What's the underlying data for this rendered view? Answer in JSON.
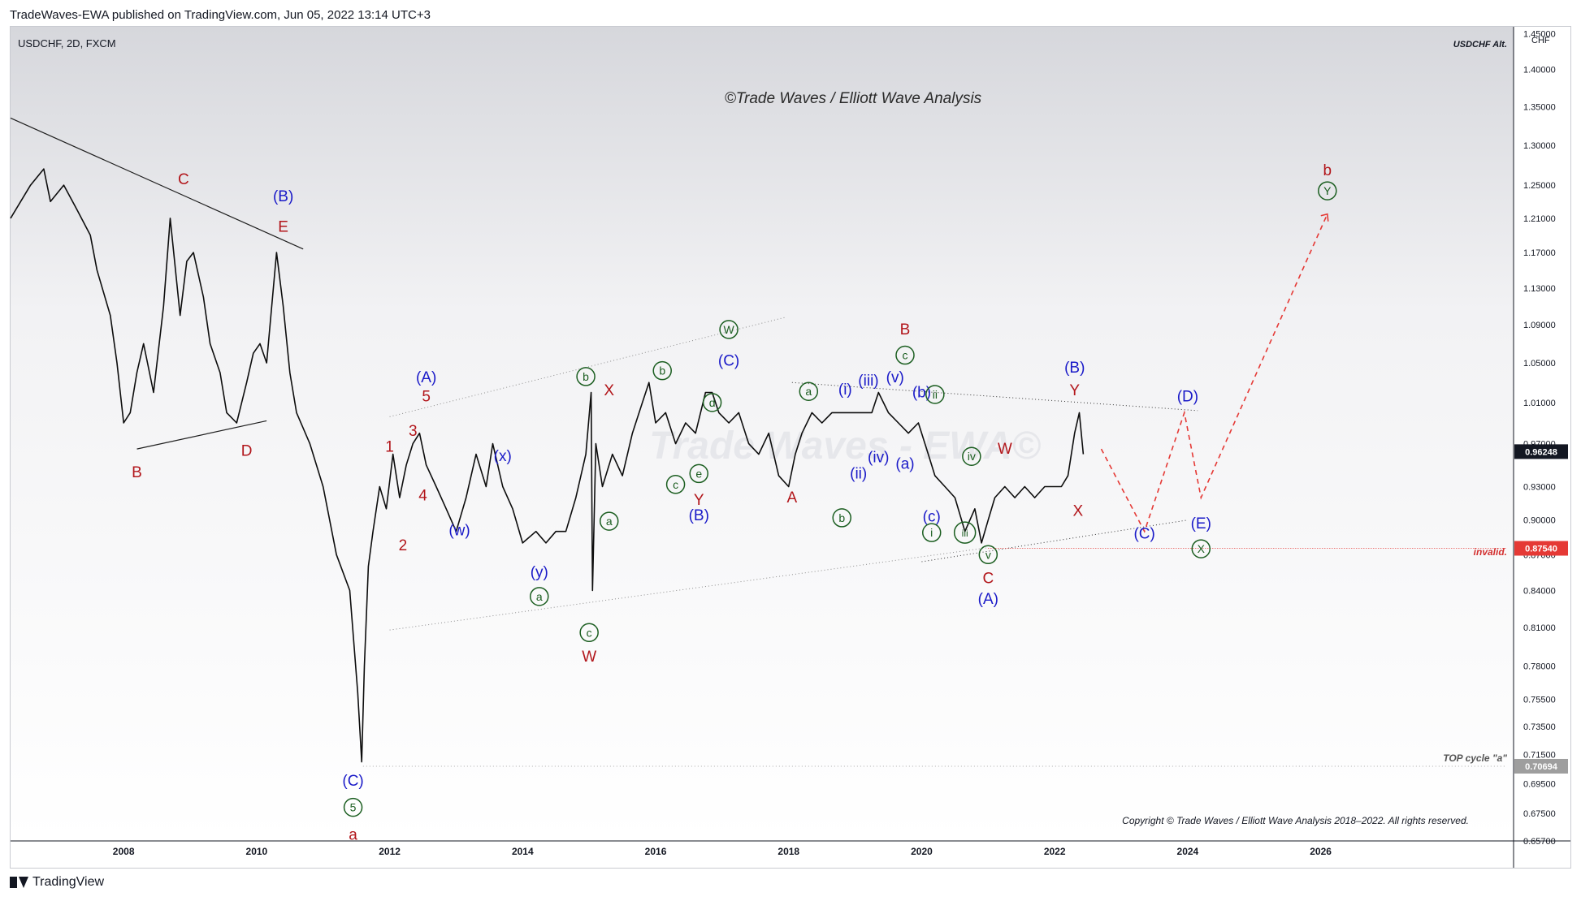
{
  "header": {
    "published_by": "TradeWaves-EWA published on TradingView.com, Jun 05, 2022 13:14 UTC+3"
  },
  "symbol_info": "USDCHF, 2D, FXCM",
  "chart_alt_label": "USDCHF Alt.",
  "watermark": "©Trade Waves / Elliott Wave Analysis",
  "faint_watermark": "Trade Waves - EWA©",
  "copyright": "Copyright © Trade Waves / Elliott Wave Analysis 2018–2022. All rights reserved.",
  "invalid_label": "invalid.",
  "top_cycle_label": "TOP cycle \"a\"",
  "footer": {
    "brand": "TradingView"
  },
  "colors": {
    "red": "#b2161b",
    "blue": "#1a1ac8",
    "green": "#1b5e20",
    "price_line": "#0d0d0d"
  },
  "chart_data": {
    "type": "line",
    "y_axis": {
      "unit": "CHF",
      "ticks": [
        "1.45000",
        "1.40000",
        "1.35000",
        "1.30000",
        "1.25000",
        "1.21000",
        "1.17000",
        "1.13000",
        "1.09000",
        "1.05000",
        "1.01000",
        "0.97000",
        "0.93000",
        "0.90000",
        "0.87000",
        "0.84000",
        "0.81000",
        "0.78000",
        "0.75500",
        "0.73500",
        "0.71500",
        "0.69500",
        "0.67500",
        "0.65700"
      ],
      "range": [
        0.657,
        1.46
      ]
    },
    "x_axis": {
      "ticks": [
        "2008",
        "2010",
        "2012",
        "2014",
        "2016",
        "2018",
        "2020",
        "2022",
        "2024",
        "2026"
      ],
      "range": [
        2006.3,
        2028.9
      ]
    },
    "price_badges": [
      {
        "label": "0.96248",
        "value": 0.96248,
        "color": "#131722"
      },
      {
        "label": "0.87540",
        "value": 0.8754,
        "color": "#e53935"
      },
      {
        "label": "0.70694",
        "value": 0.70694,
        "color": "#9e9e9e"
      }
    ],
    "series": [
      {
        "x": [
          2006.3,
          2006.6,
          2006.8,
          2006.9,
          2007.1,
          2007.3,
          2007.5,
          2007.6,
          2007.8,
          2007.9,
          2008.0,
          2008.1,
          2008.2,
          2008.3,
          2008.45,
          2008.6,
          2008.7,
          2008.85,
          2008.95,
          2009.05,
          2009.2,
          2009.3,
          2009.45,
          2009.55,
          2009.7,
          2009.85,
          2009.95,
          2010.05,
          2010.15,
          2010.3,
          2010.4,
          2010.5,
          2010.6,
          2010.8,
          2011.0,
          2011.2,
          2011.4,
          2011.52,
          2011.58,
          2011.62,
          2011.68,
          2011.75,
          2011.85,
          2011.95,
          2012.05,
          2012.15,
          2012.25,
          2012.35,
          2012.45,
          2012.55,
          2012.7,
          2012.85,
          2013.0,
          2013.15,
          2013.3,
          2013.45,
          2013.55,
          2013.7,
          2013.85,
          2014.0,
          2014.2,
          2014.35,
          2014.5,
          2014.65,
          2014.8,
          2014.95,
          2015.03,
          2015.05,
          2015.1,
          2015.2,
          2015.35,
          2015.5,
          2015.65,
          2015.8,
          2015.9,
          2016.0,
          2016.15,
          2016.3,
          2016.45,
          2016.6,
          2016.75,
          2016.85,
          2016.95,
          2017.1,
          2017.25,
          2017.4,
          2017.55,
          2017.7,
          2017.85,
          2018.0,
          2018.1,
          2018.2,
          2018.35,
          2018.5,
          2018.65,
          2018.8,
          2018.95,
          2019.1,
          2019.25,
          2019.35,
          2019.5,
          2019.65,
          2019.8,
          2019.95,
          2020.1,
          2020.2,
          2020.35,
          2020.5,
          2020.65,
          2020.8,
          2020.9,
          2021.0,
          2021.1,
          2021.25,
          2021.4,
          2021.55,
          2021.7,
          2021.85,
          2022.0,
          2022.1,
          2022.2,
          2022.3,
          2022.37,
          2022.43
        ],
        "y": [
          1.21,
          1.25,
          1.27,
          1.23,
          1.25,
          1.22,
          1.19,
          1.15,
          1.1,
          1.05,
          0.99,
          1.0,
          1.04,
          1.07,
          1.02,
          1.11,
          1.21,
          1.1,
          1.16,
          1.17,
          1.12,
          1.07,
          1.04,
          1.0,
          0.99,
          1.03,
          1.06,
          1.07,
          1.05,
          1.17,
          1.11,
          1.04,
          1.0,
          0.97,
          0.93,
          0.87,
          0.84,
          0.76,
          0.71,
          0.78,
          0.86,
          0.89,
          0.93,
          0.91,
          0.96,
          0.92,
          0.95,
          0.97,
          0.98,
          0.95,
          0.93,
          0.91,
          0.89,
          0.92,
          0.96,
          0.93,
          0.97,
          0.93,
          0.91,
          0.88,
          0.89,
          0.88,
          0.89,
          0.89,
          0.92,
          0.96,
          1.02,
          0.84,
          0.97,
          0.93,
          0.96,
          0.94,
          0.98,
          1.01,
          1.03,
          0.99,
          1.0,
          0.97,
          0.99,
          0.98,
          1.02,
          1.02,
          1.0,
          0.99,
          1.0,
          0.97,
          0.96,
          0.98,
          0.94,
          0.93,
          0.96,
          0.98,
          1.0,
          0.99,
          1.0,
          1.0,
          1.0,
          1.0,
          1.0,
          1.02,
          1.0,
          0.99,
          0.98,
          0.99,
          0.96,
          0.94,
          0.93,
          0.92,
          0.89,
          0.91,
          0.88,
          0.9,
          0.92,
          0.93,
          0.92,
          0.93,
          0.92,
          0.93,
          0.93,
          0.93,
          0.94,
          0.98,
          1.0,
          0.96
        ]
      }
    ],
    "forecast_path": {
      "x": [
        2022.7,
        2023.35,
        2023.95,
        2024.2,
        2026.1
      ],
      "y": [
        0.965,
        0.89,
        1.0,
        0.92,
        1.215
      ]
    },
    "wave_labels": [
      {
        "text": "C",
        "x": 2008.9,
        "y": 1.257,
        "color": "red",
        "style": "plain"
      },
      {
        "text": "(B)",
        "x": 2010.4,
        "y": 1.236,
        "color": "blue",
        "style": "plain"
      },
      {
        "text": "E",
        "x": 2010.4,
        "y": 1.2,
        "color": "red",
        "style": "plain"
      },
      {
        "text": "B",
        "x": 2008.2,
        "y": 0.943,
        "color": "red",
        "style": "plain"
      },
      {
        "text": "D",
        "x": 2009.85,
        "y": 0.963,
        "color": "red",
        "style": "plain"
      },
      {
        "text": "(C)",
        "x": 2011.45,
        "y": 0.697,
        "color": "blue",
        "style": "plain"
      },
      {
        "text": "5",
        "x": 2011.45,
        "y": 0.679,
        "color": "green",
        "style": "circle"
      },
      {
        "text": "a",
        "x": 2011.45,
        "y": 0.661,
        "color": "red",
        "style": "plain"
      },
      {
        "text": "(A)",
        "x": 2012.55,
        "y": 1.035,
        "color": "blue",
        "style": "plain"
      },
      {
        "text": "5",
        "x": 2012.55,
        "y": 1.016,
        "color": "red",
        "style": "plain"
      },
      {
        "text": "3",
        "x": 2012.35,
        "y": 0.982,
        "color": "red",
        "style": "plain"
      },
      {
        "text": "1",
        "x": 2012.0,
        "y": 0.967,
        "color": "red",
        "style": "plain"
      },
      {
        "text": "4",
        "x": 2012.5,
        "y": 0.922,
        "color": "red",
        "style": "plain"
      },
      {
        "text": "2",
        "x": 2012.2,
        "y": 0.878,
        "color": "red",
        "style": "plain"
      },
      {
        "text": "(w)",
        "x": 2013.05,
        "y": 0.891,
        "color": "blue",
        "style": "plain"
      },
      {
        "text": "(x)",
        "x": 2013.7,
        "y": 0.958,
        "color": "blue",
        "style": "plain"
      },
      {
        "text": "(y)",
        "x": 2014.25,
        "y": 0.855,
        "color": "blue",
        "style": "plain"
      },
      {
        "text": "a",
        "x": 2014.25,
        "y": 0.835,
        "color": "green",
        "style": "circle"
      },
      {
        "text": "b",
        "x": 2014.95,
        "y": 1.036,
        "color": "green",
        "style": "circle"
      },
      {
        "text": "X",
        "x": 2015.3,
        "y": 1.022,
        "color": "red",
        "style": "plain"
      },
      {
        "text": "c",
        "x": 2015.0,
        "y": 0.806,
        "color": "green",
        "style": "circle"
      },
      {
        "text": "W",
        "x": 2015.0,
        "y": 0.787,
        "color": "red",
        "style": "plain"
      },
      {
        "text": "a",
        "x": 2015.3,
        "y": 0.899,
        "color": "green",
        "style": "circle"
      },
      {
        "text": "b",
        "x": 2016.1,
        "y": 1.042,
        "color": "green",
        "style": "circle"
      },
      {
        "text": "d",
        "x": 2016.85,
        "y": 1.01,
        "color": "green",
        "style": "circle"
      },
      {
        "text": "c",
        "x": 2016.3,
        "y": 0.932,
        "color": "green",
        "style": "circle"
      },
      {
        "text": "e",
        "x": 2016.65,
        "y": 0.942,
        "color": "green",
        "style": "circle"
      },
      {
        "text": "Y",
        "x": 2016.65,
        "y": 0.918,
        "color": "red",
        "style": "plain"
      },
      {
        "text": "(B)",
        "x": 2016.65,
        "y": 0.904,
        "color": "blue",
        "style": "plain"
      },
      {
        "text": "W",
        "x": 2017.1,
        "y": 1.085,
        "color": "green",
        "style": "circle"
      },
      {
        "text": "(C)",
        "x": 2017.1,
        "y": 1.052,
        "color": "blue",
        "style": "plain"
      },
      {
        "text": "a",
        "x": 2018.3,
        "y": 1.021,
        "color": "green",
        "style": "circle"
      },
      {
        "text": "A",
        "x": 2018.05,
        "y": 0.92,
        "color": "red",
        "style": "plain"
      },
      {
        "text": "b",
        "x": 2018.8,
        "y": 0.902,
        "color": "green",
        "style": "circle"
      },
      {
        "text": "(i)",
        "x": 2018.85,
        "y": 1.023,
        "color": "blue",
        "style": "plain"
      },
      {
        "text": "(iii)",
        "x": 2019.2,
        "y": 1.032,
        "color": "blue",
        "style": "plain"
      },
      {
        "text": "(ii)",
        "x": 2019.05,
        "y": 0.942,
        "color": "blue",
        "style": "plain"
      },
      {
        "text": "(iv)",
        "x": 2019.35,
        "y": 0.957,
        "color": "blue",
        "style": "plain"
      },
      {
        "text": "(v)",
        "x": 2019.6,
        "y": 1.035,
        "color": "blue",
        "style": "plain"
      },
      {
        "text": "(a)",
        "x": 2019.75,
        "y": 0.951,
        "color": "blue",
        "style": "plain"
      },
      {
        "text": "(b)",
        "x": 2020.0,
        "y": 1.02,
        "color": "blue",
        "style": "plain"
      },
      {
        "text": "B",
        "x": 2019.75,
        "y": 1.085,
        "color": "red",
        "style": "plain"
      },
      {
        "text": "c",
        "x": 2019.75,
        "y": 1.058,
        "color": "green",
        "style": "circle"
      },
      {
        "text": "ii",
        "x": 2020.2,
        "y": 1.018,
        "color": "green",
        "style": "circle"
      },
      {
        "text": "iv",
        "x": 2020.75,
        "y": 0.958,
        "color": "green",
        "style": "circle"
      },
      {
        "text": "(c)",
        "x": 2020.15,
        "y": 0.903,
        "color": "blue",
        "style": "plain"
      },
      {
        "text": "i",
        "x": 2020.15,
        "y": 0.889,
        "color": "green",
        "style": "circle"
      },
      {
        "text": "iii",
        "x": 2020.65,
        "y": 0.889,
        "color": "green",
        "style": "circle"
      },
      {
        "text": "v",
        "x": 2021.0,
        "y": 0.87,
        "color": "green",
        "style": "circle"
      },
      {
        "text": "C",
        "x": 2021.0,
        "y": 0.85,
        "color": "red",
        "style": "plain"
      },
      {
        "text": "(A)",
        "x": 2021.0,
        "y": 0.833,
        "color": "blue",
        "style": "plain"
      },
      {
        "text": "W",
        "x": 2021.25,
        "y": 0.965,
        "color": "red",
        "style": "plain"
      },
      {
        "text": "(B)",
        "x": 2022.3,
        "y": 1.045,
        "color": "blue",
        "style": "plain"
      },
      {
        "text": "Y",
        "x": 2022.3,
        "y": 1.022,
        "color": "red",
        "style": "plain"
      },
      {
        "text": "X",
        "x": 2022.35,
        "y": 0.908,
        "color": "red",
        "style": "plain"
      },
      {
        "text": "(D)",
        "x": 2024.0,
        "y": 1.016,
        "color": "blue",
        "style": "plain"
      },
      {
        "text": "(C)",
        "x": 2023.35,
        "y": 0.888,
        "color": "blue",
        "style": "plain"
      },
      {
        "text": "(E)",
        "x": 2024.2,
        "y": 0.897,
        "color": "blue",
        "style": "plain"
      },
      {
        "text": "X",
        "x": 2024.2,
        "y": 0.875,
        "color": "green",
        "style": "circle"
      },
      {
        "text": "b",
        "x": 2026.1,
        "y": 1.268,
        "color": "red",
        "style": "plain"
      },
      {
        "text": "Y",
        "x": 2026.1,
        "y": 1.243,
        "color": "green",
        "style": "circle"
      }
    ]
  }
}
